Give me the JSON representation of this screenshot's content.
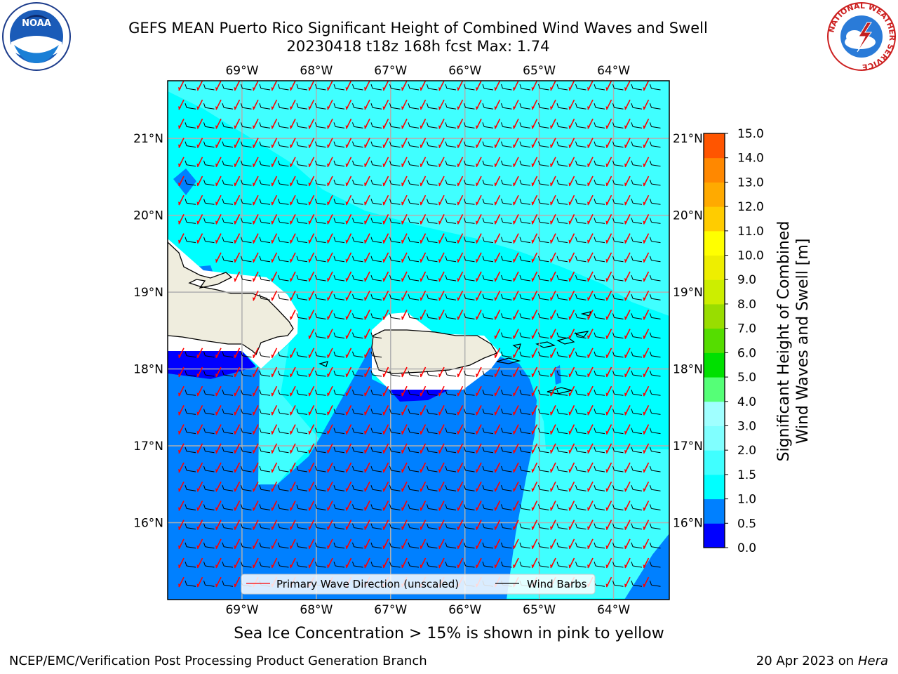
{
  "title": {
    "line1": "GEFS MEAN Puerto Rico Significant Height of Combined Wind Waves and Swell",
    "line2": "20230418 t18z 168h fcst   Max: 1.74"
  },
  "map": {
    "lon_ticks": [
      "69°W",
      "68°W",
      "67°W",
      "66°W",
      "65°W",
      "64°W"
    ],
    "lat_ticks": [
      "21°N",
      "20°N",
      "19°N",
      "18°N",
      "17°N",
      "16°N"
    ],
    "lon_values": [
      -69,
      -68,
      -67,
      -66,
      -65,
      -64
    ],
    "lat_values": [
      21,
      20,
      19,
      18,
      17,
      16
    ],
    "extent": {
      "lon_min": -70,
      "lon_max": -63.25,
      "lat_min": 15.0,
      "lat_max": 21.75
    },
    "land_color": "#efedde",
    "ocean_colors": {
      "light": "#00ffff",
      "lighter": "#40ffff",
      "mid": "#0080ff",
      "dark": "#0000ff"
    }
  },
  "legend": {
    "wave_label": "Primary Wave Direction (unscaled)",
    "barb_label": "Wind Barbs",
    "wave_color": "#ff0000",
    "barb_color": "#000000"
  },
  "colorbar": {
    "label_line1": "Significant Height of Combined",
    "label_line2": "Wind Waves and Swell [m]",
    "ticks": [
      "0.0",
      "0.5",
      "1.0",
      "1.5",
      "2.0",
      "3.0",
      "4.0",
      "5.0",
      "6.0",
      "7.0",
      "8.0",
      "9.0",
      "10.0",
      "11.0",
      "12.0",
      "13.0",
      "14.0",
      "15.0"
    ],
    "colors": [
      "#0000ff",
      "#0080ff",
      "#00ffff",
      "#40ffff",
      "#80ffff",
      "#a0ffff",
      "#55ff77",
      "#00e000",
      "#55dd00",
      "#99dd00",
      "#ccee00",
      "#eeee00",
      "#ffff00",
      "#ffcc00",
      "#ffaa00",
      "#ff8800",
      "#ff5500",
      "#ff2200",
      "#ff0000"
    ]
  },
  "note": "Sea Ice Concentration > 15% is shown in pink to yellow",
  "footer": {
    "left": "NCEP/EMC/Verification Post Processing Product Generation Branch",
    "date": "20 Apr 2023 on ",
    "host": "Hera"
  },
  "logos": {
    "noaa": "NOAA",
    "nws_ring": "NATIONAL WEATHER SERVICE"
  }
}
